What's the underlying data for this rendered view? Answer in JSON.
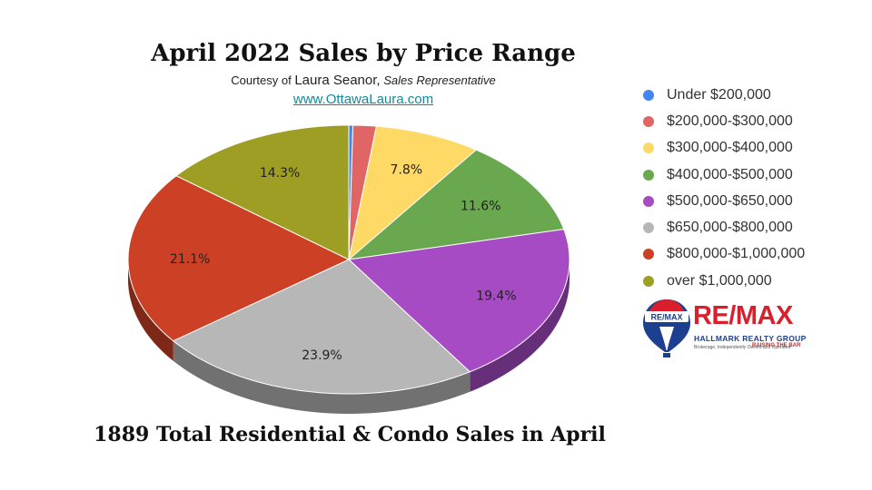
{
  "header": {
    "title": "April 2022 Sales by Price Range",
    "courtesy_prefix": "Courtesy of",
    "courtesy_name": "Laura Seanor,",
    "courtesy_role": "Sales Representative",
    "website": "www.OttawaLaura.com"
  },
  "footer": {
    "text": "1889 Total Residential & Condo Sales in April"
  },
  "logo": {
    "brand": "RE/MAX",
    "balloon_text": "RE/MAX",
    "subtitle": "HALLMARK REALTY GROUP",
    "tagline": "Brokerage, Independently Owned and Operated",
    "slogan": "RAISING THE BAR"
  },
  "chart_data": {
    "type": "pie",
    "style": "3d",
    "title": "April 2022 Sales by Price Range",
    "legend_position": "right",
    "slices": [
      {
        "label": "Under $200,000",
        "value": 0.3,
        "color": "#4285f4",
        "data_label": ""
      },
      {
        "label": "$200,000-$300,000",
        "value": 1.7,
        "color": "#e06666",
        "data_label": ""
      },
      {
        "label": "$300,000-$400,000",
        "value": 7.8,
        "color": "#ffd966",
        "data_label": "7.8%"
      },
      {
        "label": "$400,000-$500,000",
        "value": 11.6,
        "color": "#6aa84f",
        "data_label": "11.6%"
      },
      {
        "label": "$500,000-$650,000",
        "value": 19.4,
        "color": "#a64bc4",
        "data_label": "19.4%"
      },
      {
        "label": "$650,000-$800,000",
        "value": 23.9,
        "color": "#b7b7b7",
        "data_label": "23.9%"
      },
      {
        "label": "$800,000-$1,000,000",
        "value": 21.1,
        "color": "#cc4125",
        "data_label": "21.1%"
      },
      {
        "label": "over $1,000,000",
        "value": 14.3,
        "color": "#9e9e24",
        "data_label": "14.3%"
      }
    ]
  }
}
